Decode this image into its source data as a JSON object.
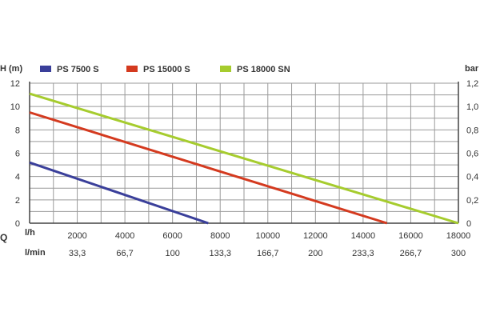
{
  "chart_data": {
    "type": "line",
    "y_left_label": "H (m)",
    "y_right_label": "bar",
    "legend": [
      {
        "name": "PS 7500 S",
        "color": "#3a3f9a"
      },
      {
        "name": "PS 15000 S",
        "color": "#d43a1f"
      },
      {
        "name": "PS 18000 SN",
        "color": "#a6cc2e"
      }
    ],
    "series": [
      {
        "name": "PS 7500 S",
        "color": "#3a3f9a",
        "points": [
          [
            0,
            5.2
          ],
          [
            7500,
            0
          ]
        ]
      },
      {
        "name": "PS 15000 S",
        "color": "#d43a1f",
        "points": [
          [
            0,
            9.5
          ],
          [
            15000,
            0
          ]
        ]
      },
      {
        "name": "PS 18000 SN",
        "color": "#a6cc2e",
        "points": [
          [
            0,
            11.1
          ],
          [
            18000,
            0
          ]
        ]
      }
    ],
    "x_range": [
      0,
      18000
    ],
    "y_left_range": [
      0,
      12
    ],
    "y_left_ticks": [
      "0",
      "2",
      "4",
      "6",
      "8",
      "10",
      "12"
    ],
    "y_right_ticks": [
      "0",
      "0,2",
      "0,4",
      "0,6",
      "0,8",
      "1,0",
      "1,2"
    ],
    "x_minor_gridline_step": 1000,
    "y_gridline_step": 1,
    "q_label": "Q",
    "x_row1_unit": "l/h",
    "x_row1_ticks": [
      {
        "value": 2000,
        "label": "2000"
      },
      {
        "value": 4000,
        "label": "4000"
      },
      {
        "value": 6000,
        "label": "6000"
      },
      {
        "value": 8000,
        "label": "8000"
      },
      {
        "value": 10000,
        "label": "10000"
      },
      {
        "value": 12000,
        "label": "12000"
      },
      {
        "value": 14000,
        "label": "14000"
      },
      {
        "value": 16000,
        "label": "16000"
      },
      {
        "value": 18000,
        "label": "18000"
      }
    ],
    "x_row2_unit": "l/min",
    "x_row2_ticks": [
      {
        "value": 2000,
        "label": "33,3"
      },
      {
        "value": 4000,
        "label": "66,7"
      },
      {
        "value": 6000,
        "label": "100"
      },
      {
        "value": 8000,
        "label": "133,3"
      },
      {
        "value": 10000,
        "label": "166,7"
      },
      {
        "value": 12000,
        "label": "200"
      },
      {
        "value": 14000,
        "label": "233,3"
      },
      {
        "value": 16000,
        "label": "266,7"
      },
      {
        "value": 18000,
        "label": "300"
      }
    ],
    "grid": true
  }
}
